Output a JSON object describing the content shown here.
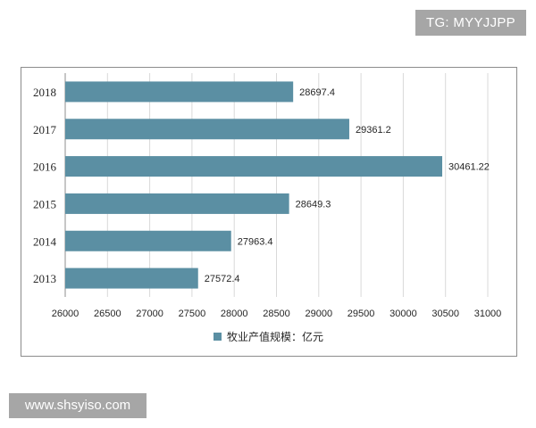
{
  "watermark_top": "TG: MYYJJPP",
  "watermark_bottom": "www.shsyiso.com",
  "colors": {
    "bar": "#5b8fa3",
    "grid": "#d9d9d9",
    "axis": "#8c8c8c"
  },
  "chart_data": {
    "type": "bar",
    "orientation": "horizontal",
    "categories": [
      "2018",
      "2017",
      "2016",
      "2015",
      "2014",
      "2013"
    ],
    "series": [
      {
        "name": "牧业产值规模：亿元",
        "values": [
          28697.4,
          29361.2,
          30461.22,
          28649.3,
          27963.4,
          27572.4
        ],
        "labels": [
          "28697.4",
          "29361.2",
          "30461.22",
          "28649.3",
          "27963.4",
          "27572.4"
        ]
      }
    ],
    "xlim": [
      26000,
      31000
    ],
    "xticks": [
      "26000",
      "26500",
      "27000",
      "27500",
      "28000",
      "28500",
      "29000",
      "29500",
      "30000",
      "30500",
      "31000"
    ],
    "grid": "vertical",
    "legend": "bottom"
  }
}
